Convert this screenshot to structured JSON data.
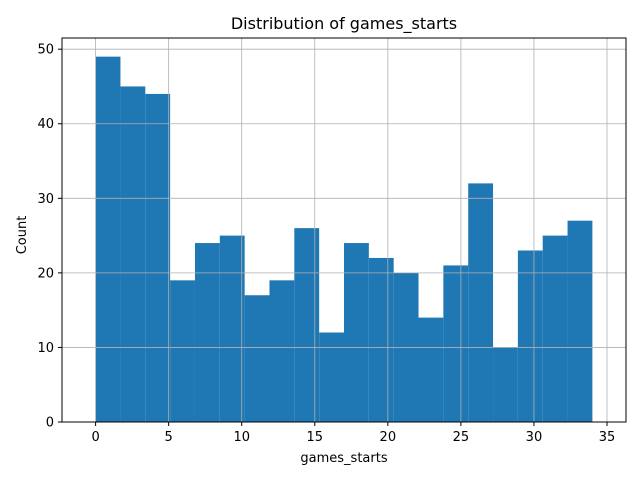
{
  "chart_data": {
    "type": "bar",
    "title": "Distribution of games_starts",
    "xlabel": "games_starts",
    "ylabel": "Count",
    "xlim": [
      -2.3,
      36.3
    ],
    "ylim": [
      0,
      51.5
    ],
    "xticks": [
      0,
      5,
      10,
      15,
      20,
      25,
      30,
      35
    ],
    "yticks": [
      0,
      10,
      20,
      30,
      40,
      50
    ],
    "grid": true,
    "bar_color": "#1f77b4",
    "bin_edges": [
      0,
      1.7,
      3.4,
      5.1,
      6.8,
      8.5,
      10.2,
      11.9,
      13.6,
      15.3,
      17.0,
      18.7,
      20.4,
      22.1,
      23.8,
      25.5,
      27.2,
      28.9,
      30.6,
      32.3,
      34.0
    ],
    "values": [
      49,
      45,
      44,
      19,
      24,
      25,
      17,
      19,
      26,
      12,
      24,
      22,
      20,
      14,
      21,
      32,
      10,
      23,
      25,
      27
    ]
  }
}
